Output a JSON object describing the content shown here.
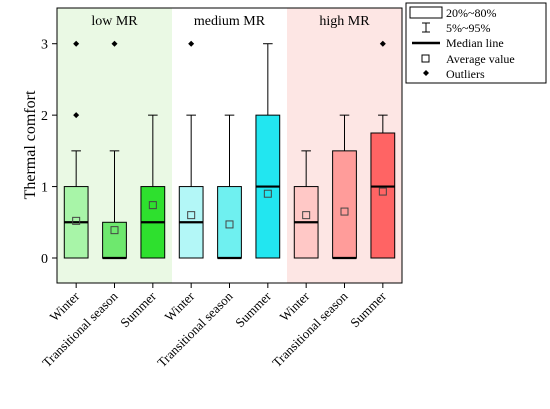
{
  "chart_data": {
    "type": "box",
    "ylabel": "Thermal comfort",
    "ylim": [
      -0.35,
      3.5
    ],
    "yticks": [
      0,
      1,
      2,
      3
    ],
    "groups": [
      {
        "name": "low MR",
        "color": "#eaf9e4"
      },
      {
        "name": "medium MR",
        "color": "#ffffff"
      },
      {
        "name": "high MR",
        "color": "#fde6e4"
      }
    ],
    "boxes": [
      {
        "group": 0,
        "category": "Winter",
        "q1": 0,
        "q3": 1,
        "median": 0.5,
        "mean": 0.52,
        "whisker_low": 0,
        "whisker_high": 1.5,
        "outliers": [
          2,
          3
        ],
        "color": "#a8f5a8"
      },
      {
        "group": 0,
        "category": "Transitional season",
        "q1": 0,
        "q3": 0.5,
        "median": 0,
        "mean": 0.39,
        "whisker_low": 0,
        "whisker_high": 1.5,
        "outliers": [
          3
        ],
        "color": "#6ee86e"
      },
      {
        "group": 0,
        "category": "Summer",
        "q1": 0,
        "q3": 1,
        "median": 0.5,
        "mean": 0.74,
        "whisker_low": 0,
        "whisker_high": 2,
        "outliers": [],
        "color": "#2ee02e"
      },
      {
        "group": 1,
        "category": "Winter",
        "q1": 0,
        "q3": 1,
        "median": 0.5,
        "mean": 0.6,
        "whisker_low": 0,
        "whisker_high": 2,
        "outliers": [
          3
        ],
        "color": "#b3f7f7"
      },
      {
        "group": 1,
        "category": "Transitional season",
        "q1": 0,
        "q3": 1,
        "median": 0,
        "mean": 0.47,
        "whisker_low": 0,
        "whisker_high": 2,
        "outliers": [],
        "color": "#6ff0f0"
      },
      {
        "group": 1,
        "category": "Summer",
        "q1": 0,
        "q3": 2,
        "median": 1,
        "mean": 0.9,
        "whisker_low": 0,
        "whisker_high": 3,
        "outliers": [],
        "color": "#22e6f0"
      },
      {
        "group": 2,
        "category": "Winter",
        "q1": 0,
        "q3": 1,
        "median": 0.5,
        "mean": 0.6,
        "whisker_low": 0,
        "whisker_high": 1.5,
        "outliers": [],
        "color": "#ffc8c6"
      },
      {
        "group": 2,
        "category": "Transitional season",
        "q1": 0,
        "q3": 1.5,
        "median": 0,
        "mean": 0.65,
        "whisker_low": 0,
        "whisker_high": 2,
        "outliers": [],
        "color": "#ff9c9a"
      },
      {
        "group": 2,
        "category": "Summer",
        "q1": 0,
        "q3": 1.75,
        "median": 1,
        "mean": 0.93,
        "whisker_low": 0,
        "whisker_high": 2,
        "outliers": [
          3
        ],
        "color": "#ff6464"
      }
    ],
    "legend": {
      "position": "top-right",
      "entries": {
        "box": "20%~80%",
        "whisker": "5%~95%",
        "median": "Median line",
        "mean": "Average value",
        "outlier": "Outliers"
      }
    }
  }
}
